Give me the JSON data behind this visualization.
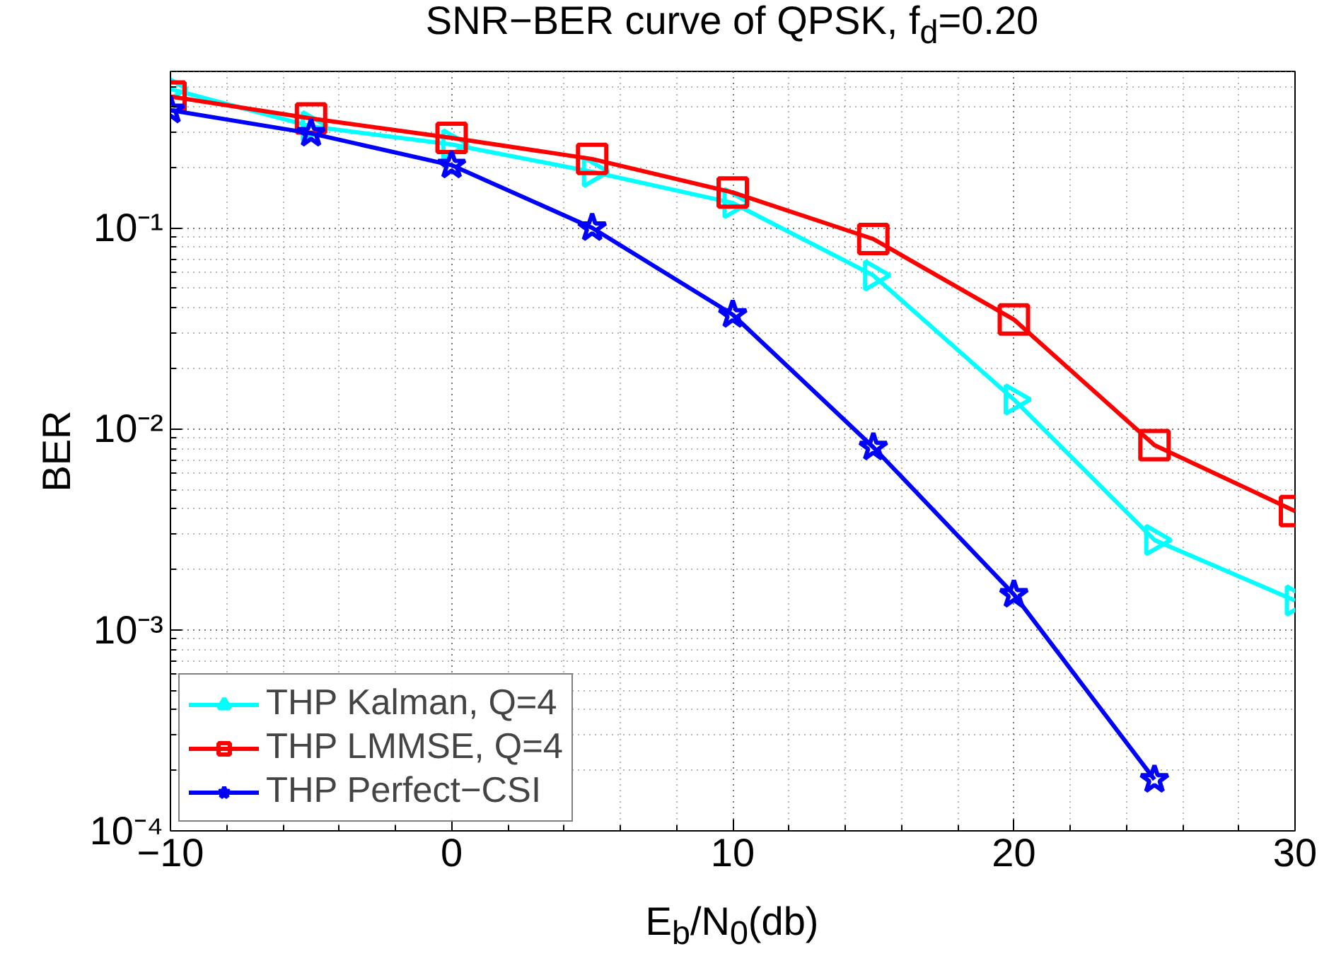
{
  "chart_data": {
    "type": "line",
    "title": "SNR−BER curve of QPSK, f$_{d}$=0.20",
    "xlabel": "E$_{b}$/N$_{0}$(db)",
    "ylabel": "BER",
    "x": [
      -10,
      -5,
      0,
      5,
      10,
      15,
      20,
      25,
      30
    ],
    "series": [
      {
        "name": "THP Kalman, Q=4",
        "color": "#00ffff",
        "marker": "triangle",
        "values": [
          0.49,
          0.32,
          0.26,
          0.19,
          0.133,
          0.058,
          0.014,
          0.0028,
          0.0014
        ]
      },
      {
        "name": "THP LMMSE, Q=4",
        "color": "#ff0000",
        "marker": "square",
        "values": [
          0.45,
          0.35,
          0.28,
          0.22,
          0.15,
          0.088,
          0.035,
          0.0083,
          0.0039
        ]
      },
      {
        "name": "THP Perfect−CSI",
        "color": "#0000ff",
        "marker": "star",
        "values": [
          0.385,
          0.295,
          0.205,
          0.1,
          0.037,
          0.0081,
          0.0015,
          0.00018,
          null
        ]
      }
    ],
    "log": "y",
    "xlim": [
      -10,
      30
    ],
    "ylim": [
      0.0001,
      0.6
    ],
    "xticks": [
      -10,
      0,
      10,
      20,
      30
    ],
    "yticks": [
      {
        "value": 0.0001,
        "label": "10⁻⁴"
      },
      {
        "value": 0.001,
        "label": "10⁻³"
      },
      {
        "value": 0.01,
        "label": "10⁻²"
      },
      {
        "value": 0.1,
        "label": "10⁻¹"
      }
    ],
    "grid": true,
    "legend": "bottom left",
    "line_style": "solid"
  }
}
